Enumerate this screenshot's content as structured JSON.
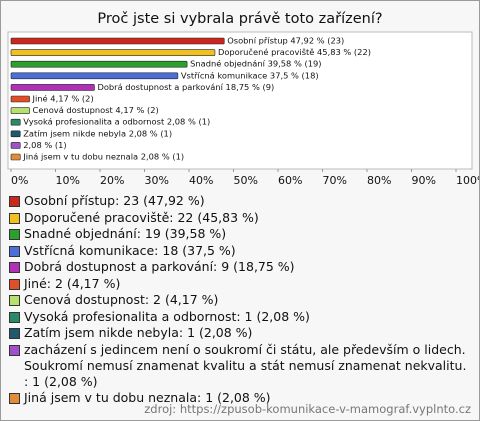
{
  "chart_data": {
    "type": "hbar",
    "title": "Proč jste si vybrala právě toto zařízení?",
    "values": [
      47.92,
      45.83,
      39.58,
      37.5,
      18.75,
      4.17,
      4.17,
      2.08,
      2.08,
      2.08,
      2.08
    ],
    "value_labels": [
      "Osobní přístup 47,92 % (23)",
      "Doporučené pracoviště 45,83 % (22)",
      "Snadné objednání 39,58 % (19)",
      "Vstřícná komunikace 37,5 % (18)",
      "Dobrá dostupnost a parkování 18,75 % (9)",
      "Jiné 4,17 % (2)",
      "Cenová dostupnost 4,17 % (2)",
      "Vysoká profesionalita a odbornost 2,08 % (1)",
      "Zatím jsem nikde nebyla 2,08 % (1)",
      "2,08 % (1)",
      "Jiná jsem v tu dobu neznala 2,08 % (1)"
    ],
    "colors": [
      "#c8281e",
      "#f0c020",
      "#2ca02c",
      "#4a6fd8",
      "#b030b8",
      "#e05028",
      "#b8e070",
      "#2a8a68",
      "#1e5a6c",
      "#a050c8",
      "#e08c3c"
    ],
    "legend": [
      "Osobní přístup: 23 (47,92 %)",
      "Doporučené pracoviště: 22 (45,83 %)",
      "Snadné objednání: 19 (39,58 %)",
      "Vstřícná komunikace: 18 (37,5 %)",
      "Dobrá dostupnost a parkování: 9 (18,75 %)",
      "Jiné: 2 (4,17 %)",
      "Cenová dostupnost: 2 (4,17 %)",
      "Vysoká profesionalita a odbornost: 1 (2,08 %)",
      "Zatím jsem nikde nebyla: 1 (2,08 %)",
      "zacházení s jedincem není o soukromí či státu, ale především o lidech. Soukromí nemusí znamenat kvalitu a stát nemusí znamenat nekvalitu. : 1 (2,08 %)",
      "Jiná jsem v tu dobu neznala: 1 (2,08 %)"
    ],
    "xlim": [
      0,
      100
    ],
    "xticks": [
      {
        "value": 0,
        "label": "0%"
      },
      {
        "value": 10,
        "label": "10%"
      },
      {
        "value": 20,
        "label": "20%"
      },
      {
        "value": 30,
        "label": "30%"
      },
      {
        "value": 40,
        "label": "40%"
      },
      {
        "value": 50,
        "label": "50%"
      },
      {
        "value": 60,
        "label": "60%"
      },
      {
        "value": 70,
        "label": "70%"
      },
      {
        "value": 80,
        "label": "80%"
      },
      {
        "value": 90,
        "label": "90%"
      },
      {
        "value": 100,
        "label": "100%"
      }
    ],
    "source": "zdroj: https://zpusob-komunikace-v-mamograf.vyplnto.cz"
  }
}
